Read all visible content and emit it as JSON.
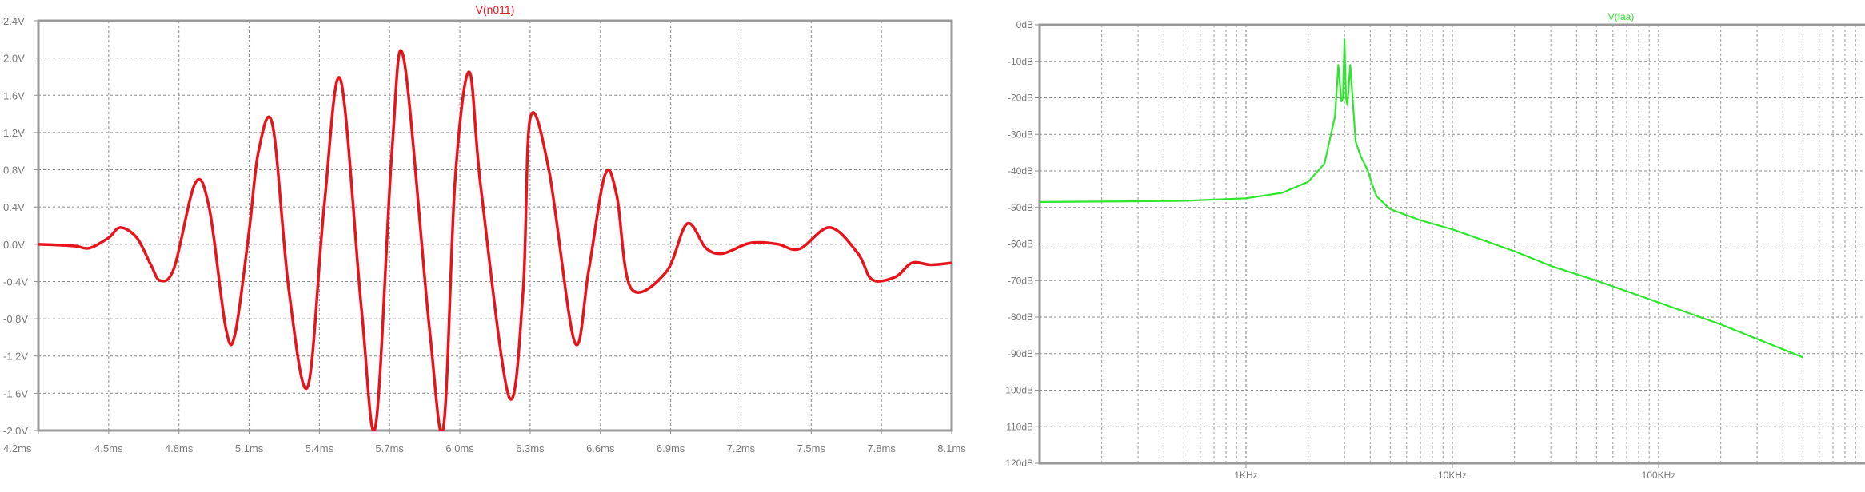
{
  "chart_data": [
    {
      "type": "line",
      "title": "V(n011)",
      "xlabel": "",
      "ylabel": "",
      "x_unit": "ms",
      "y_unit": "V",
      "xlim": [
        4.2,
        8.1
      ],
      "ylim": [
        -2.0,
        2.4
      ],
      "grid": true,
      "line_color": "#e8141c",
      "x_ticks": [
        "4.2ms",
        "4.5ms",
        "4.8ms",
        "5.1ms",
        "5.4ms",
        "5.7ms",
        "6.0ms",
        "6.3ms",
        "6.6ms",
        "6.9ms",
        "7.2ms",
        "7.5ms",
        "7.8ms",
        "8.1ms"
      ],
      "y_ticks": [
        "2.4V",
        "2.0V",
        "1.6V",
        "1.2V",
        "0.8V",
        "0.4V",
        "0.0V",
        "-0.4V",
        "-0.8V",
        "-1.2V",
        "-1.6V",
        "-2.0V"
      ],
      "series": [
        {
          "name": "V(n011)",
          "x": [
            4.2,
            4.3,
            4.36,
            4.42,
            4.5,
            4.55,
            4.62,
            4.68,
            4.72,
            4.78,
            4.87,
            4.93,
            5.0,
            5.04,
            5.1,
            5.14,
            5.2,
            5.27,
            5.35,
            5.42,
            5.49,
            5.58,
            5.64,
            5.71,
            5.76,
            5.87,
            5.93,
            5.98,
            6.04,
            6.09,
            6.21,
            6.27,
            6.3,
            6.38,
            6.49,
            6.55,
            6.62,
            6.67,
            6.73,
            6.88,
            6.97,
            7.05,
            7.12,
            7.22,
            7.28,
            7.36,
            7.45,
            7.58,
            7.7,
            7.76,
            7.86,
            7.93,
            8.01,
            8.1
          ],
          "y": [
            0.0,
            -0.01,
            -0.02,
            -0.04,
            0.07,
            0.18,
            0.07,
            -0.22,
            -0.39,
            -0.25,
            0.66,
            0.38,
            -0.9,
            -0.96,
            0.15,
            1.0,
            1.28,
            -0.5,
            -1.53,
            0.4,
            1.77,
            -0.7,
            -1.95,
            1.0,
            2.0,
            -0.9,
            -1.96,
            0.7,
            1.85,
            0.6,
            -1.64,
            -0.5,
            1.35,
            0.8,
            -1.05,
            -0.28,
            0.75,
            0.52,
            -0.47,
            -0.3,
            0.22,
            -0.04,
            -0.1,
            0.0,
            0.02,
            0.0,
            -0.05,
            0.18,
            -0.1,
            -0.38,
            -0.35,
            -0.2,
            -0.22,
            -0.2
          ]
        }
      ]
    },
    {
      "type": "line",
      "title": "V(faa)",
      "xlabel": "",
      "ylabel": "",
      "x_unit": "Hz",
      "y_unit": "dB",
      "x_scale": "log",
      "xlim": [
        100,
        1000000
      ],
      "ylim": [
        -120,
        0
      ],
      "grid": true,
      "line_color": "#2ee62e",
      "x_ticks": [
        "1KHz",
        "10KHz",
        "100KHz"
      ],
      "y_ticks": [
        "0dB",
        "-10dB",
        "-20dB",
        "-30dB",
        "-40dB",
        "-50dB",
        "-60dB",
        "-70dB",
        "-80dB",
        "-90dB",
        "100dB",
        "110dB",
        "120dB"
      ],
      "series": [
        {
          "name": "V(faa)",
          "x": [
            100,
            200,
            500,
            1000,
            1500,
            2000,
            2400,
            2700,
            2800,
            2900,
            2950,
            3000,
            3050,
            3100,
            3200,
            3400,
            3600,
            3900,
            4100,
            4300,
            5000,
            7000,
            10000,
            15000,
            20000,
            30000,
            50000,
            100000,
            200000,
            500000
          ],
          "y": [
            -48.5,
            -48.4,
            -48.2,
            -47.5,
            -46.0,
            -43.0,
            -38.0,
            -25.0,
            -11.0,
            -21.0,
            -20.0,
            -4.0,
            -20.0,
            -22.0,
            -11.0,
            -32.0,
            -36.0,
            -40.0,
            -44.0,
            -47.0,
            -50.5,
            -53.5,
            -56.0,
            -59.5,
            -62.0,
            -66.0,
            -70.0,
            -76.0,
            -82.0,
            -91.0
          ]
        }
      ]
    }
  ]
}
